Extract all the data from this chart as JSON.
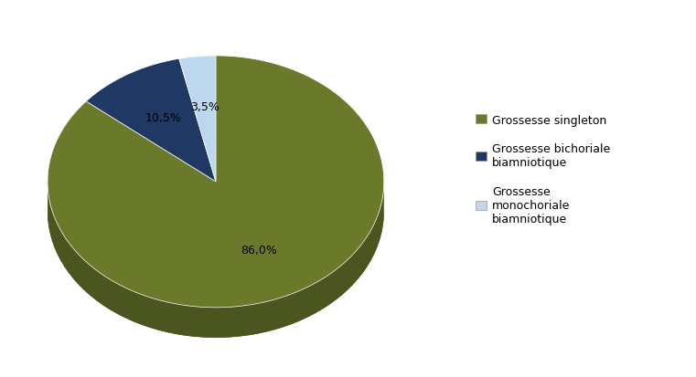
{
  "slices": [
    86.0,
    10.5,
    3.5
  ],
  "labels": [
    "Grossesse singleton",
    "Grossesse bichoriale\nbiamniotique",
    "Grossesse\nmonochoriale\nbiamniotique"
  ],
  "colors": [
    "#6b7a2a",
    "#1f3864",
    "#bdd7ee"
  ],
  "dark_colors": [
    "#4a5520",
    "#162a4a",
    "#8bafc4"
  ],
  "autopct_labels": [
    "86,0%",
    "10,5%",
    "3,5%"
  ],
  "startangle": 90,
  "background_color": "#ffffff",
  "figsize": [
    7.61,
    4.14
  ],
  "dpi": 100,
  "legend_labels": [
    "Grossesse singleton",
    "Grossesse bichoriale\nbiamniotique",
    "Grossesse\nmonochoriale\nbiamniotique"
  ]
}
